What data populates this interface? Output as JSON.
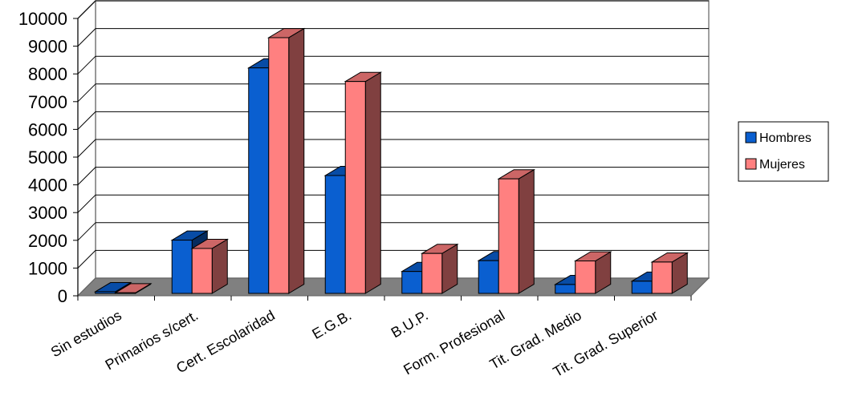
{
  "chart_data": {
    "type": "bar",
    "categories": [
      "Sin estudios",
      "Primarios s/cert.",
      "Cert. Escolaridad",
      "E.G.B.",
      "B.U.P.",
      "Form. Profesional",
      "Tit. Grad. Medio",
      "Tit. Grad. Superior"
    ],
    "series": [
      {
        "name": "Hombres",
        "values": [
          60,
          1920,
          8130,
          4250,
          790,
          1180,
          320,
          440
        ],
        "color": "#0a5fd0"
      },
      {
        "name": "Mujeres",
        "values": [
          20,
          1620,
          9220,
          7640,
          1440,
          4130,
          1170,
          1130
        ],
        "color": "#ff8080"
      }
    ],
    "y_ticks": [
      "0",
      "1000",
      "2000",
      "3000",
      "4000",
      "5000",
      "6000",
      "7000",
      "8000",
      "9000",
      "10000"
    ],
    "ylim": [
      0,
      10000
    ],
    "title": "",
    "xlabel": "",
    "ylabel": "",
    "grid": true,
    "legend": "right",
    "style": "3d-clustered-column"
  }
}
